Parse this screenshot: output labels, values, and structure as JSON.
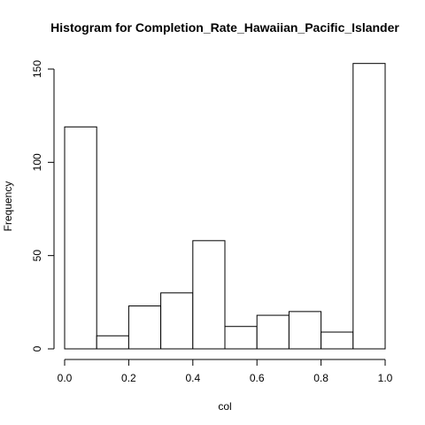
{
  "chart_data": {
    "type": "bar",
    "title": "Histogram for  Completion_Rate_Hawaiian_Pacific_Islander",
    "xlabel": "col",
    "ylabel": "Frequency",
    "bins": [
      {
        "start": 0.0,
        "end": 0.1,
        "count": 119
      },
      {
        "start": 0.1,
        "end": 0.2,
        "count": 7
      },
      {
        "start": 0.2,
        "end": 0.3,
        "count": 23
      },
      {
        "start": 0.3,
        "end": 0.4,
        "count": 30
      },
      {
        "start": 0.4,
        "end": 0.5,
        "count": 58
      },
      {
        "start": 0.5,
        "end": 0.6,
        "count": 12
      },
      {
        "start": 0.6,
        "end": 0.7,
        "count": 18
      },
      {
        "start": 0.7,
        "end": 0.8,
        "count": 20
      },
      {
        "start": 0.8,
        "end": 0.9,
        "count": 9
      },
      {
        "start": 0.9,
        "end": 1.0,
        "count": 153
      }
    ],
    "xlim": [
      0,
      1
    ],
    "ylim": [
      0,
      153
    ],
    "x_ticks": [
      {
        "value": 0.0,
        "label": "0.0"
      },
      {
        "value": 0.2,
        "label": "0.2"
      },
      {
        "value": 0.4,
        "label": "0.4"
      },
      {
        "value": 0.6,
        "label": "0.6"
      },
      {
        "value": 0.8,
        "label": "0.8"
      },
      {
        "value": 1.0,
        "label": "1.0"
      }
    ],
    "y_ticks": [
      {
        "value": 0,
        "label": "0"
      },
      {
        "value": 50,
        "label": "50"
      },
      {
        "value": 100,
        "label": "100"
      },
      {
        "value": 150,
        "label": "150"
      }
    ],
    "bar_fill": "#ffffff",
    "bar_stroke": "#000000",
    "grid": false
  }
}
